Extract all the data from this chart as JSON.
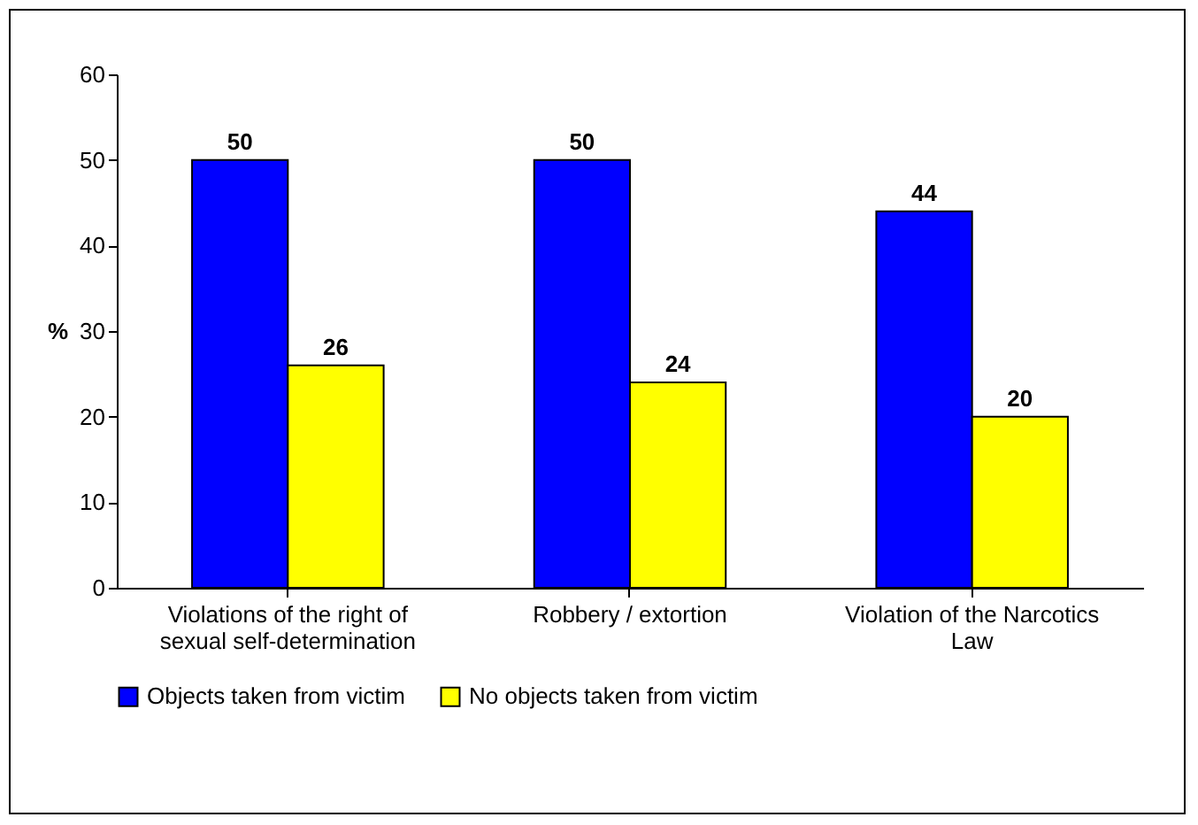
{
  "chart_data": {
    "type": "bar",
    "ylabel": "%",
    "categories": [
      "Violations of the right of sexual self-determination",
      "Robbery / extortion",
      "Violation of the Narcotics Law"
    ],
    "series": [
      {
        "name": "Objects taken from victim",
        "color": "#0000ff",
        "values": [
          50,
          50,
          44
        ]
      },
      {
        "name": "No objects taken from victim",
        "color": "#ffff00",
        "values": [
          26,
          24,
          20
        ]
      }
    ],
    "ylim": [
      0,
      60
    ],
    "yticks": [
      0,
      10,
      20,
      30,
      40,
      50,
      60
    ],
    "grid": false,
    "legend": "bottom",
    "data_labels": true
  }
}
